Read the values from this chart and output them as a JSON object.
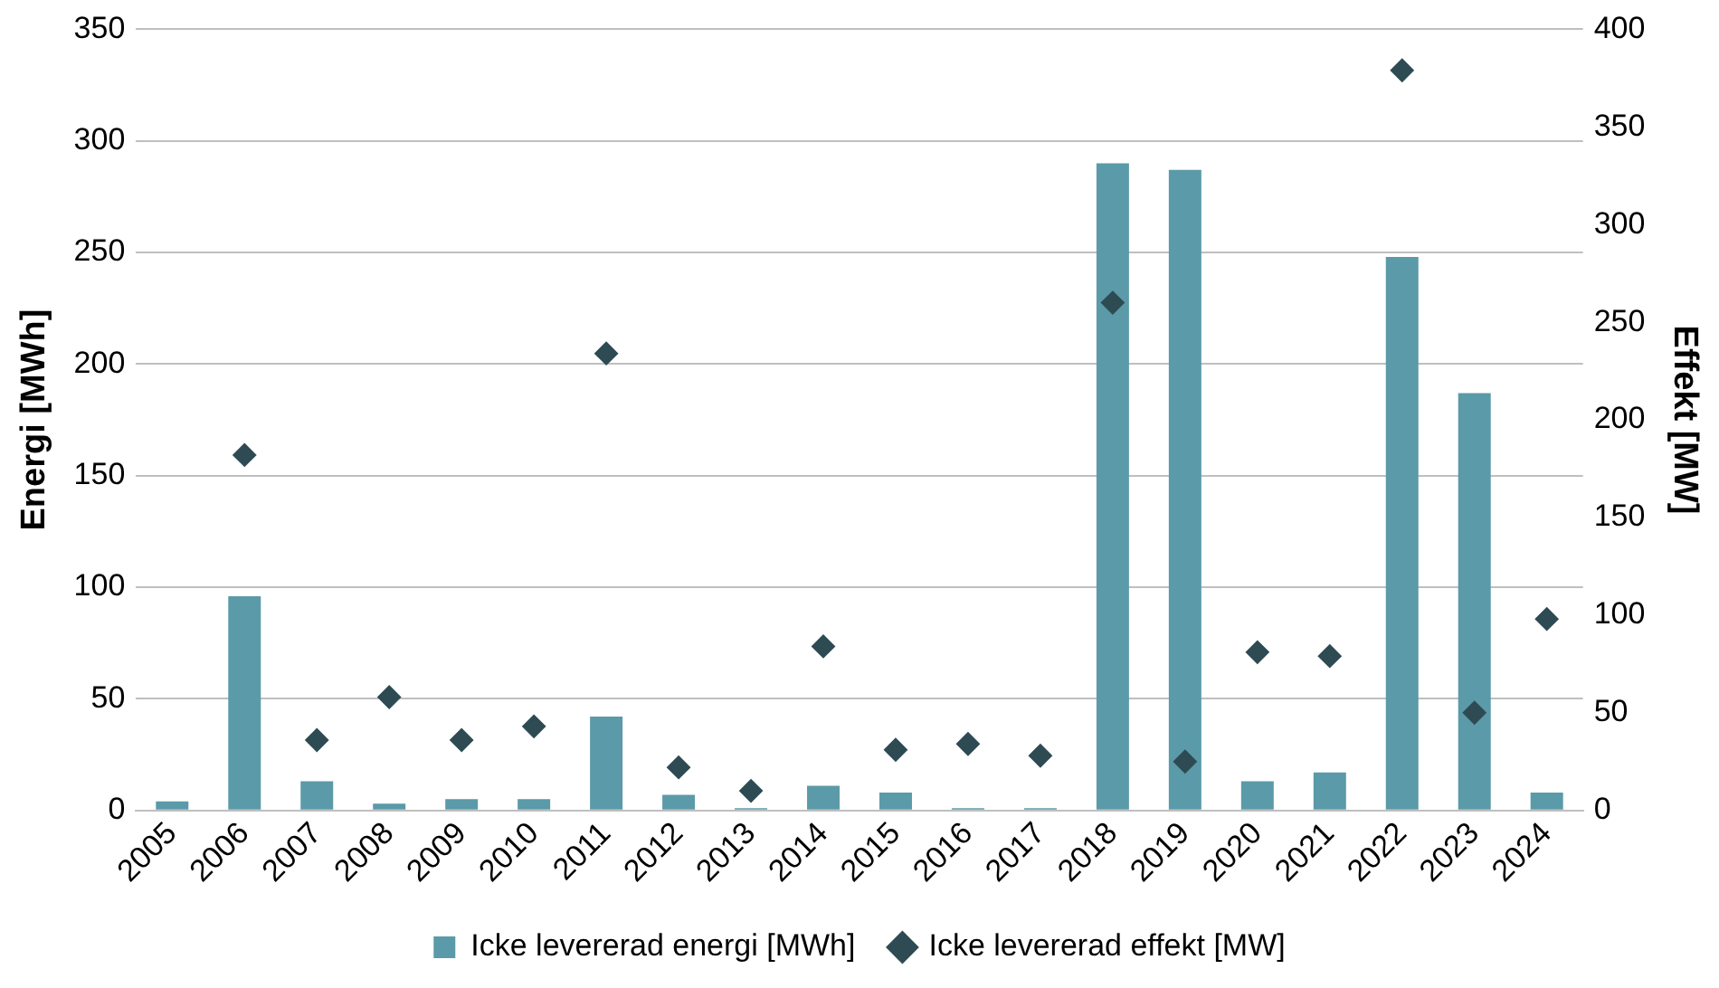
{
  "chart_data": {
    "type": "bar",
    "ylabel": "Energi [MWh]",
    "y2label": "Effekt [MW]",
    "categories": [
      "2005",
      "2006",
      "2007",
      "2008",
      "2009",
      "2010",
      "2011",
      "2012",
      "2013",
      "2014",
      "2015",
      "2016",
      "2017",
      "2018",
      "2019",
      "2020",
      "2021",
      "2022",
      "2023",
      "2024"
    ],
    "series": [
      {
        "name": "Icke levererad energi [MWh]",
        "color": "#5b9aa8",
        "values": [
          4,
          96,
          13,
          3,
          5,
          5,
          42,
          7,
          1,
          11,
          8,
          1,
          1,
          290,
          287,
          13,
          17,
          248,
          187,
          8
        ]
      },
      {
        "name": "Icke levererad effekt [MW]",
        "type": "scatter",
        "axis": "y2",
        "marker": "diamond",
        "color": "#2e4b53",
        "values": [
          null,
          182,
          36,
          58,
          36,
          43,
          234,
          22,
          10,
          84,
          31,
          34,
          28,
          260,
          25,
          81,
          79,
          379,
          50,
          98
        ]
      }
    ],
    "ylim": [
      0,
      350
    ],
    "yticks": [
      0,
      50,
      100,
      150,
      200,
      250,
      300,
      350
    ],
    "y2lim": [
      0,
      400
    ],
    "y2ticks": [
      0,
      50,
      100,
      150,
      200,
      250,
      300,
      350,
      400
    ],
    "grid": "y",
    "legend": "bottom"
  }
}
